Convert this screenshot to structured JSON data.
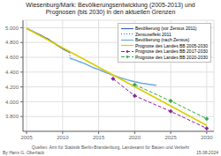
{
  "chart_data": {
    "type": "line",
    "title": "Wiesenburg/Mark: Bevölkerungsentwicklung (2005-2013) und\nPrognosen (bis 2030) in den aktuellen Grenzen",
    "xlim": [
      2004.5,
      2031
    ],
    "ylim": [
      3600,
      5100
    ],
    "xticks": [
      2005,
      2010,
      2015,
      2020,
      2025,
      2030
    ],
    "yticks": [
      {
        "value": 3800,
        "label": "3.800"
      },
      {
        "value": 4000,
        "label": "4.000"
      },
      {
        "value": 4200,
        "label": "4.200"
      },
      {
        "value": 4400,
        "label": "4.400"
      },
      {
        "value": 4600,
        "label": "4.600"
      },
      {
        "value": 4800,
        "label": "4.800"
      },
      {
        "value": 5000,
        "label": "5.000"
      }
    ],
    "grid": true,
    "legend": "upper right",
    "series": [
      {
        "name": "Bevölkerung (vor Zensus 2011)",
        "color": "#3366bb",
        "line_style": "solid",
        "x": [
          2005,
          2005.25,
          2005.5,
          2005.75,
          2006,
          2006.25,
          2006.5,
          2006.75,
          2007,
          2007.25,
          2007.5,
          2007.75,
          2008,
          2008.25,
          2008.5,
          2008.75,
          2009,
          2009.25,
          2009.5,
          2009.75,
          2010,
          2010.25,
          2010.5,
          2010.75,
          2011
        ],
        "values": [
          4990,
          4978,
          4966,
          4955,
          4944,
          4930,
          4918,
          4907,
          4896,
          4882,
          4868,
          4856,
          4845,
          4827,
          4812,
          4798,
          4780,
          4763,
          4748,
          4733,
          4718,
          4703,
          4690,
          4678,
          4665
        ]
      },
      {
        "name": "Zensuseffekt 2011",
        "color": "#3366bb",
        "line_style": "dotted",
        "x": [
          2011,
          2011
        ],
        "values": [
          4665,
          4590
        ]
      },
      {
        "name": "Bevölkerung (nach Zensus)",
        "color": "#66aadd",
        "line_style": "solid",
        "x": [
          2011,
          2011.25,
          2011.5,
          2011.75,
          2012,
          2012.25,
          2012.5,
          2012.75,
          2013,
          2013.25,
          2013.5,
          2013.75,
          2014,
          2014.5,
          2015,
          2015.5,
          2016,
          2016.5,
          2017,
          2017.5,
          2018,
          2018.5,
          2019,
          2019.5,
          2020,
          2020.5,
          2021,
          2021.5,
          2022,
          2022.5,
          2023
        ],
        "values": [
          4590,
          4580,
          4572,
          4563,
          4554,
          4544,
          4535,
          4527,
          4518,
          4506,
          4494,
          4482,
          4470,
          4452,
          4435,
          4415,
          4395,
          4375,
          4355,
          4340,
          4325,
          4310,
          4295,
          4282,
          4270,
          4260,
          4250,
          4242,
          4235,
          4228,
          4222
        ]
      },
      {
        "name": "Prognose des Landes BB 2005-2030",
        "color": "#ddcc00",
        "line_style": "solid",
        "x": [
          2005,
          2030
        ],
        "values": [
          4990,
          3680
        ]
      },
      {
        "name": "Prognose des Landes BB 2017-2030",
        "color": "#882299",
        "line_style": "dashed",
        "marker": "diamond",
        "x": [
          2017,
          2020,
          2025,
          2030
        ],
        "values": [
          4310,
          4080,
          3870,
          3640
        ]
      },
      {
        "name": "Prognose des Landes BB 2020-2030",
        "color": "#33aa44",
        "line_style": "dashed",
        "marker": "diamond",
        "x": [
          2020,
          2025,
          2030
        ],
        "values": [
          4230,
          4010,
          3770
        ]
      }
    ],
    "annotations": [
      "By Hans G. Oberlack",
      "Quellen: Amt für Statistik Berlin-Brandenburg, Landesamt für Bauen und Verkehr",
      "15.08.2024"
    ]
  }
}
